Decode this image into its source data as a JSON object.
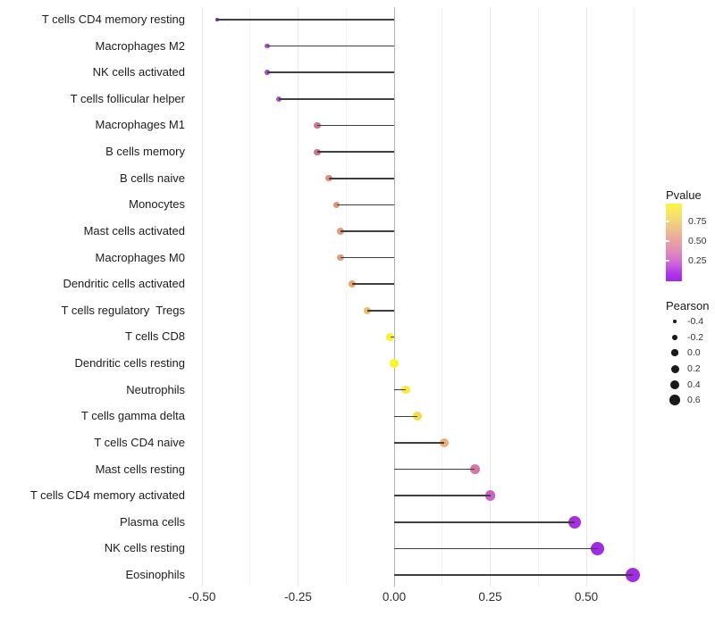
{
  "chart_data": {
    "type": "lollipop",
    "orientation": "horizontal",
    "title": "",
    "xlabel": "",
    "ylabel": "",
    "grid": "vertical-major-and-minor",
    "baseline_value": 0,
    "xlim": [
      -0.53,
      0.66
    ],
    "x_tick_values": [
      -0.5,
      -0.25,
      0,
      0.25,
      0.5
    ],
    "x_tick_labels": [
      "-0.50",
      "-0.25",
      "0.00",
      "0.25",
      "0.50"
    ],
    "x_minor_tick_values": [
      -0.375,
      -0.125,
      0.125,
      0.375,
      0.625
    ],
    "color_encodes": "Pvalue",
    "size_encodes": "Pearson",
    "points": [
      {
        "label": "T cells CD4 memory resting",
        "pearson": -0.46,
        "color": "#7E2DB0"
      },
      {
        "label": "Macrophages M2",
        "pearson": -0.33,
        "color": "#A94CC5"
      },
      {
        "label": "NK cells activated",
        "pearson": -0.33,
        "color": "#A94CC5"
      },
      {
        "label": "T cells follicular helper",
        "pearson": -0.3,
        "color": "#AC52C6"
      },
      {
        "label": "Macrophages M1",
        "pearson": -0.2,
        "color": "#CB7590"
      },
      {
        "label": "B cells memory",
        "pearson": -0.2,
        "color": "#CF7489"
      },
      {
        "label": "B cells naive",
        "pearson": -0.17,
        "color": "#E0907F"
      },
      {
        "label": "Monocytes",
        "pearson": -0.15,
        "color": "#E29676"
      },
      {
        "label": "Mast cells activated",
        "pearson": -0.14,
        "color": "#E59B79"
      },
      {
        "label": "Macrophages M0",
        "pearson": -0.14,
        "color": "#E59B79"
      },
      {
        "label": "Dendritic cells activated",
        "pearson": -0.11,
        "color": "#ECA76B"
      },
      {
        "label": "T cells regulatory  Tregs",
        "pearson": -0.07,
        "color": "#EDBE60"
      },
      {
        "label": "T cells CD8",
        "pearson": -0.01,
        "color": "#FBF32E"
      },
      {
        "label": "Dendritic cells resting",
        "pearson": 0.0,
        "color": "#FBF32E"
      },
      {
        "label": "Neutrophils",
        "pearson": 0.03,
        "color": "#F8E93C"
      },
      {
        "label": "T cells gamma delta",
        "pearson": 0.06,
        "color": "#F4DC49"
      },
      {
        "label": "T cells CD4 naive",
        "pearson": 0.13,
        "color": "#EFAE79"
      },
      {
        "label": "Mast cells resting",
        "pearson": 0.21,
        "color": "#D776A8"
      },
      {
        "label": "T cells CD4 memory activated",
        "pearson": 0.25,
        "color": "#CD62C6"
      },
      {
        "label": "Plasma cells",
        "pearson": 0.47,
        "color": "#A62FE0"
      },
      {
        "label": "NK cells resting",
        "pearson": 0.53,
        "color": "#A12BE5"
      },
      {
        "label": "Eosinophils",
        "pearson": 0.62,
        "color": "#A32BE2"
      }
    ]
  },
  "legends": {
    "pvalue": {
      "title": "Pvalue",
      "tick_labels": [
        "0.75",
        "0.50",
        "0.25"
      ],
      "gradient_top_color": "#FBF63F",
      "gradient_bottom_color": "#A426E8"
    },
    "pearson": {
      "title": "Pearson",
      "entries": [
        {
          "label": "-0.4",
          "value": -0.4
        },
        {
          "label": "-0.2",
          "value": -0.2
        },
        {
          "label": "0.0",
          "value": 0.0
        },
        {
          "label": "0.2",
          "value": 0.2
        },
        {
          "label": "0.4",
          "value": 0.4
        },
        {
          "label": "0.6",
          "value": 0.6
        }
      ]
    }
  },
  "colors": {
    "stem": "#3f3f3f",
    "gridline_major": "#e7e7e7",
    "gridline_minor": "#f3f3f3",
    "zero_line": "#b5b5b5",
    "axis_text": "#2e2e2e"
  }
}
